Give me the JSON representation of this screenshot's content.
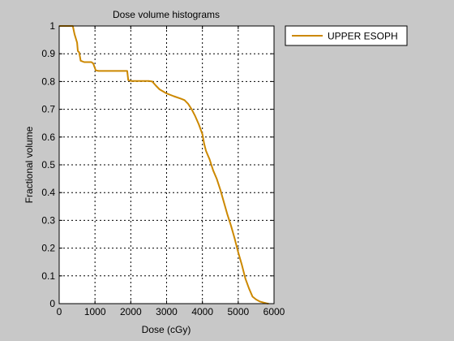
{
  "window": {
    "background": "#c8c8c8"
  },
  "chart_data": {
    "type": "line",
    "title": "Dose volume histograms",
    "xlabel": "Dose (cGy)",
    "ylabel": "Fractional volume",
    "xlim": [
      0,
      6000
    ],
    "ylim": [
      0,
      1
    ],
    "x_ticks": [
      0,
      1000,
      2000,
      3000,
      4000,
      5000,
      6000
    ],
    "x_tick_labels": [
      "0",
      "1000",
      "2000",
      "3000",
      "4000",
      "5000",
      "6000"
    ],
    "y_ticks": [
      0,
      0.1,
      0.2,
      0.3,
      0.4,
      0.5,
      0.6,
      0.7,
      0.8,
      0.9,
      1
    ],
    "y_tick_labels": [
      "0",
      "0.1",
      "0.2",
      "0.3",
      "0.4",
      "0.5",
      "0.6",
      "0.7",
      "0.8",
      "0.9",
      "1"
    ],
    "grid": true,
    "grid_style": "dotted",
    "legend_position": "outside-right-top",
    "series": [
      {
        "name": "UPPER ESOPH",
        "color": "#cc8800",
        "x": [
          0,
          380,
          430,
          500,
          520,
          560,
          600,
          700,
          900,
          950,
          1020,
          1100,
          1300,
          1900,
          1930,
          2000,
          2200,
          2500,
          2600,
          2700,
          2800,
          3000,
          3200,
          3400,
          3500,
          3600,
          3700,
          3800,
          3900,
          4000,
          4050,
          4100,
          4200,
          4300,
          4400,
          4500,
          4600,
          4700,
          4800,
          4900,
          5000,
          5100,
          5200,
          5300,
          5400,
          5500,
          5600,
          5700,
          5800,
          5850
        ],
        "y": [
          1.0,
          1.0,
          0.97,
          0.94,
          0.91,
          0.905,
          0.875,
          0.87,
          0.87,
          0.865,
          0.84,
          0.838,
          0.838,
          0.838,
          0.805,
          0.802,
          0.802,
          0.802,
          0.8,
          0.785,
          0.772,
          0.757,
          0.747,
          0.738,
          0.733,
          0.72,
          0.7,
          0.675,
          0.645,
          0.61,
          0.575,
          0.55,
          0.52,
          0.48,
          0.45,
          0.41,
          0.365,
          0.32,
          0.28,
          0.235,
          0.185,
          0.14,
          0.09,
          0.055,
          0.025,
          0.015,
          0.008,
          0.004,
          0.001,
          0.0
        ]
      }
    ]
  }
}
